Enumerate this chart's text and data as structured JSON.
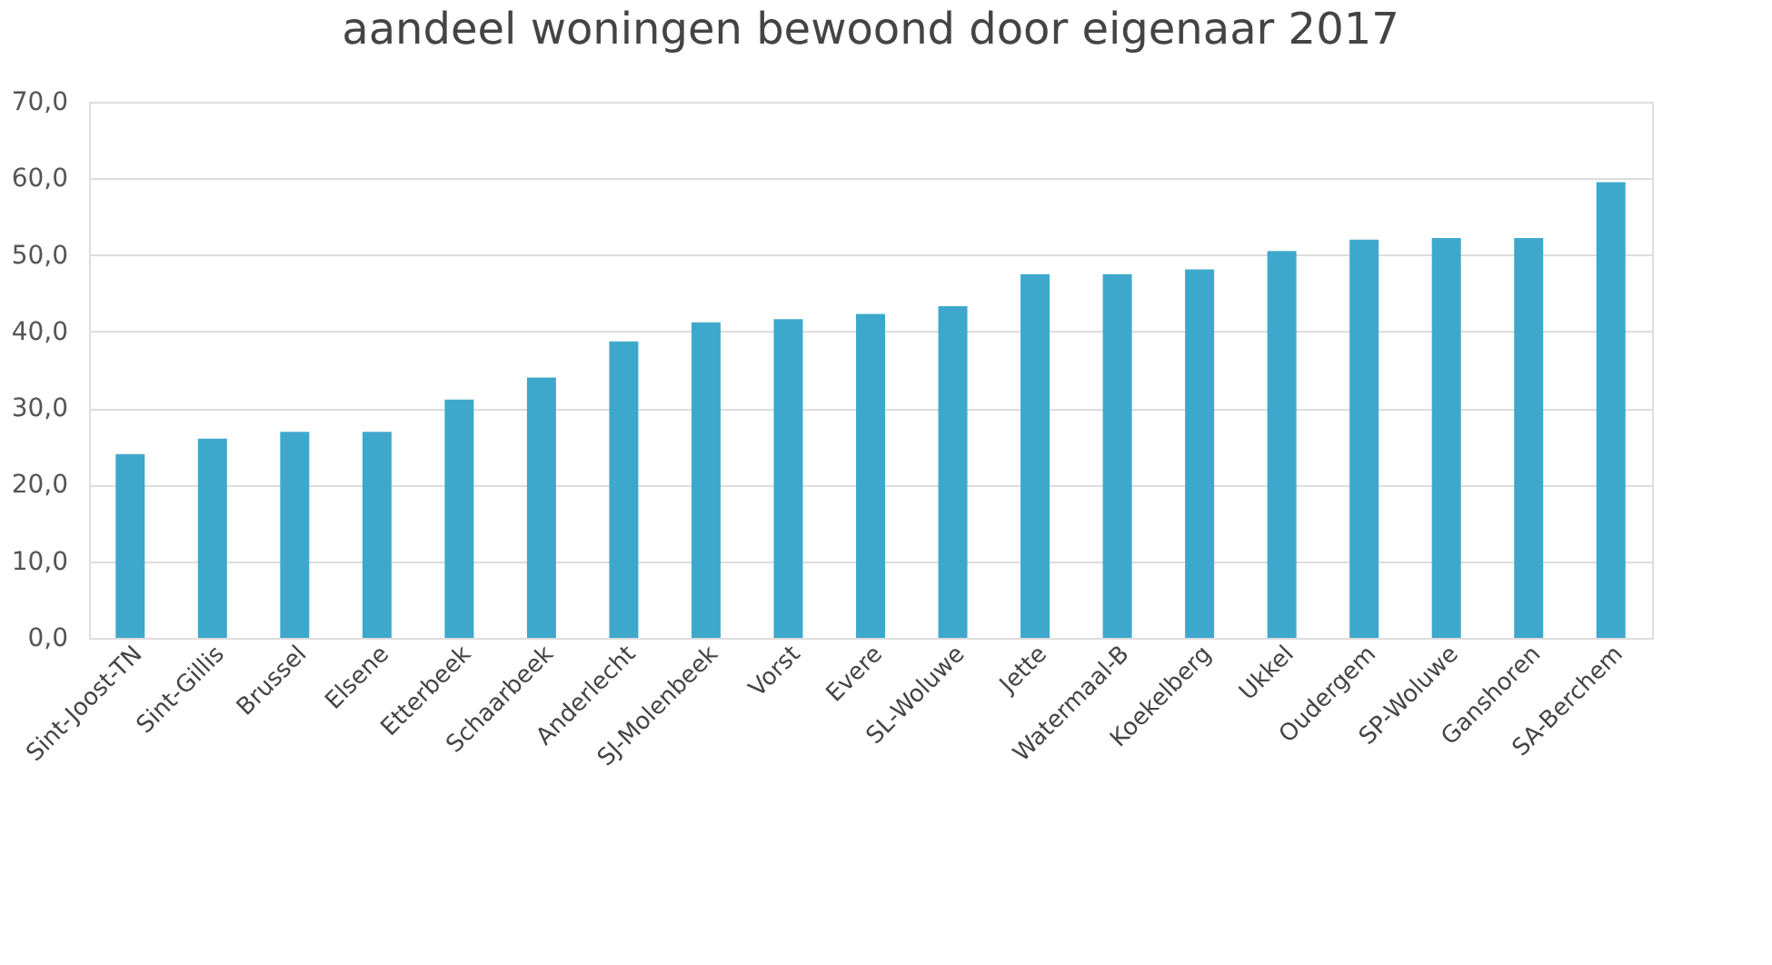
{
  "chart_data": {
    "type": "bar",
    "title": "aandeel woningen bewoond door eigenaar 2017",
    "categories": [
      "Sint-Joost-TN",
      "Sint-Gillis",
      "Brussel",
      "Elsene",
      "Etterbeek",
      "Schaarbeek",
      "Anderlecht",
      "SJ-Molenbeek",
      "Vorst",
      "Evere",
      "SL-Woluwe",
      "Jette",
      "Watermaal-B",
      "Koekelberg",
      "Ukkel",
      "Oudergem",
      "SP-Woluwe",
      "Ganshoren",
      "SA-Berchem"
    ],
    "values": [
      24.0,
      26.0,
      26.9,
      26.9,
      31.1,
      34.0,
      38.7,
      41.2,
      41.6,
      42.3,
      43.3,
      47.5,
      47.5,
      48.1,
      50.5,
      52.0,
      52.2,
      52.2,
      59.5
    ],
    "color": "#3ea8cc",
    "ylim": [
      0,
      70
    ],
    "yticks": [
      {
        "value": 0,
        "label": "0,0"
      },
      {
        "value": 10,
        "label": "10,0"
      },
      {
        "value": 20,
        "label": "20,0"
      },
      {
        "value": 30,
        "label": "30,0"
      },
      {
        "value": 40,
        "label": "40,0"
      },
      {
        "value": 50,
        "label": "50,0"
      },
      {
        "value": 60,
        "label": "60,0"
      },
      {
        "value": 70,
        "label": "70,0"
      }
    ],
    "grid": "y"
  }
}
